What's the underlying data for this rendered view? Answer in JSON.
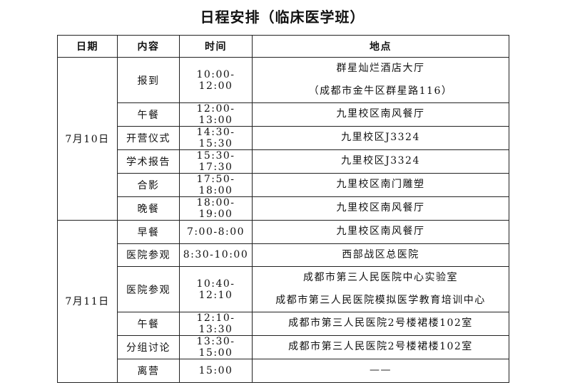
{
  "title": "日程安排（临床医学班）",
  "headers": [
    "日期",
    "内容",
    "时间",
    "地点"
  ],
  "days": [
    {
      "date": "7月10日",
      "items": [
        {
          "content": "报到",
          "time": "10:00-12:00",
          "place": [
            "群星灿烂酒店大厅",
            "（成都市金牛区群星路116）"
          ]
        },
        {
          "content": "午餐",
          "time": "12:00-13:00",
          "place": [
            "九里校区南风餐厅"
          ]
        },
        {
          "content": "开营仪式",
          "time": "14:30-15:30",
          "place": [
            "九里校区J3324"
          ]
        },
        {
          "content": "学术报告",
          "time": "15:30-17:30",
          "place": [
            "九里校区J3324"
          ]
        },
        {
          "content": "合影",
          "time": "17:50-18:00",
          "place": [
            "九里校区南门雕塑"
          ]
        },
        {
          "content": "晚餐",
          "time": "18:00-19:00",
          "place": [
            "九里校区南风餐厅"
          ]
        }
      ]
    },
    {
      "date": "7月11日",
      "items": [
        {
          "content": "早餐",
          "time": "7:00-8:00",
          "place": [
            "九里校区南风餐厅"
          ]
        },
        {
          "content": "医院参观",
          "time": "8:30-10:00",
          "place": [
            "西部战区总医院"
          ]
        },
        {
          "content": "医院参观",
          "time": "10:40-12:10",
          "place": [
            "成都市第三人民医院中心实验室",
            "成都市第三人民医院模拟医学教育培训中心"
          ]
        },
        {
          "content": "午餐",
          "time": "12:10-13:30",
          "place": [
            "成都市第三人民医院2号楼裙楼102室"
          ]
        },
        {
          "content": "分组讨论",
          "time": "13:30-15:00",
          "place": [
            "成都市第三人民医院2号楼裙楼102室"
          ]
        },
        {
          "content": "离营",
          "time": "15:00",
          "place": [
            "——"
          ]
        }
      ]
    }
  ]
}
